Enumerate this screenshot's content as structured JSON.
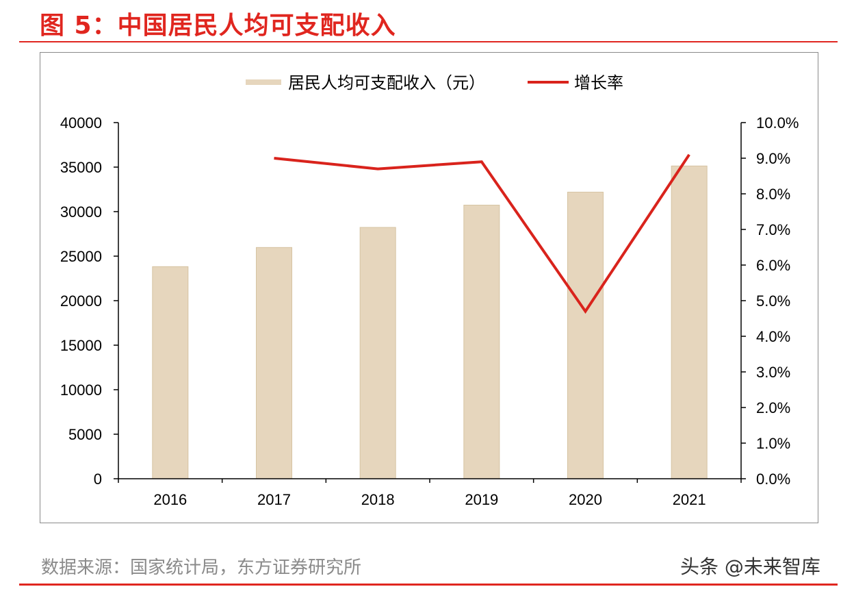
{
  "figure": {
    "title": "图 5：中国居民人均可支配收入",
    "source": "数据来源：国家统计局，东方证券研究所",
    "watermark": "头条 @未来智库"
  },
  "colors": {
    "accent": "#e0261f",
    "bar": "#e6d6bd",
    "line": "#d9231c",
    "axis": "#000000",
    "source_text": "#8a8a8a"
  },
  "chart_data": {
    "type": "bar",
    "categories": [
      "2016",
      "2017",
      "2018",
      "2019",
      "2020",
      "2021"
    ],
    "series": [
      {
        "name": "居民人均可支配收入（元）",
        "type": "bar",
        "axis": "left",
        "values": [
          23821,
          25974,
          28228,
          30733,
          32189,
          35128
        ]
      },
      {
        "name": "增长率",
        "type": "line",
        "axis": "right",
        "values": [
          null,
          9.0,
          8.7,
          8.9,
          4.7,
          9.1
        ]
      }
    ],
    "y_left": {
      "min": 0,
      "max": 40000,
      "ticks": [
        "0",
        "5000",
        "10000",
        "15000",
        "20000",
        "25000",
        "30000",
        "35000",
        "40000"
      ]
    },
    "y_right": {
      "min": 0,
      "max": 10,
      "ticks": [
        "0.0%",
        "1.0%",
        "2.0%",
        "3.0%",
        "4.0%",
        "5.0%",
        "6.0%",
        "7.0%",
        "8.0%",
        "9.0%",
        "10.0%"
      ]
    },
    "grid": false,
    "legend_position": "top-center"
  }
}
